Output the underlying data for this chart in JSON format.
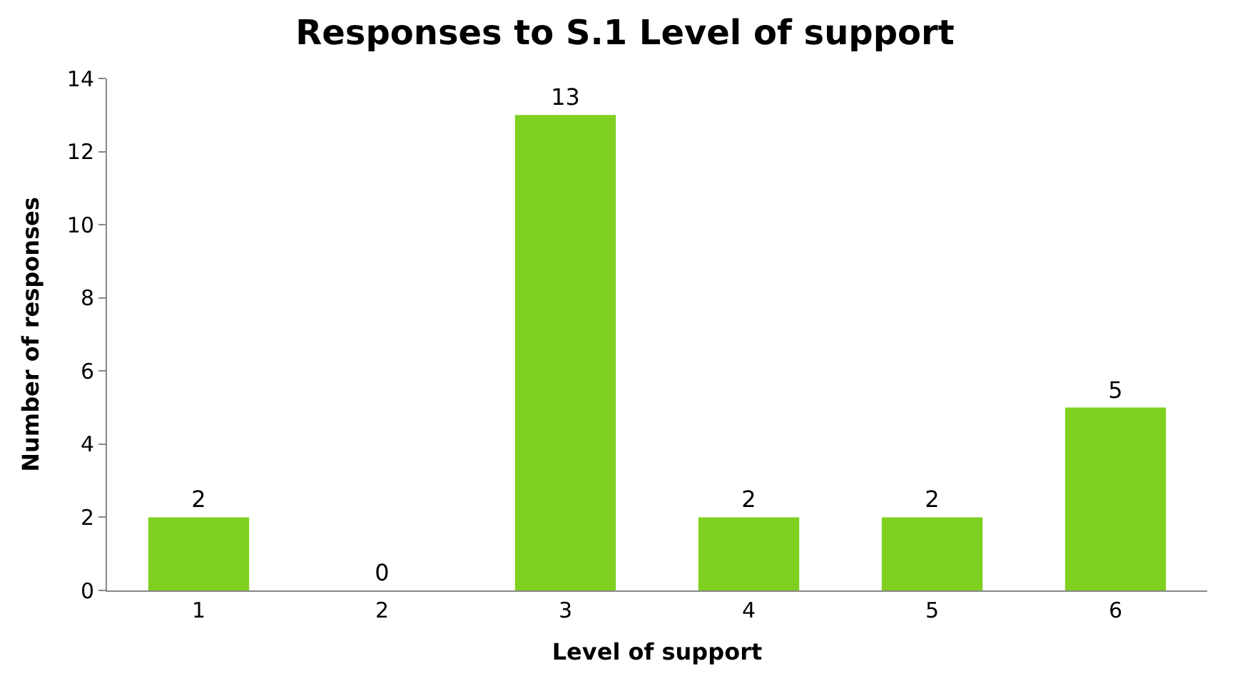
{
  "chart_data": {
    "type": "bar",
    "title": "Responses to S.1 Level of support",
    "xlabel": "Level of support",
    "ylabel": "Number of responses",
    "categories": [
      "1",
      "2",
      "3",
      "4",
      "5",
      "6"
    ],
    "values": [
      2,
      0,
      13,
      2,
      2,
      5
    ],
    "color": "#7fd020",
    "ylim": [
      0,
      14
    ],
    "yticks": [
      0,
      2,
      4,
      6,
      8,
      10,
      12,
      14
    ],
    "data_labels": true
  }
}
